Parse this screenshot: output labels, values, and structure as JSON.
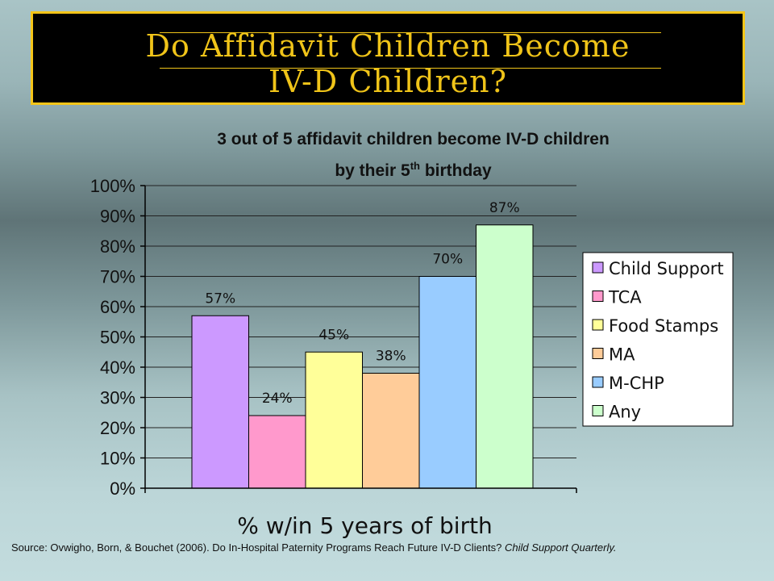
{
  "slide": {
    "title_line1": "Do Affidavit Children Become",
    "title_line2": "IV-D Children?",
    "title_color": "#f0c419",
    "border_color": "#f5c518",
    "source_text": "Source: Ovwigho, Born, & Bouchet (2006).  Do In-Hospital Paternity Programs Reach Future IV-D Clients? ",
    "source_journal": "Child Support Quarterly."
  },
  "chart_data": {
    "type": "bar",
    "title_line1": "3 out of 5 affidavit children become IV-D children",
    "title_line2_pre": "by their 5",
    "title_line2_sup": "th",
    "title_line2_post": " birthday",
    "xlabel": "% w/in 5 years of birth",
    "ylim": [
      0,
      100
    ],
    "yticks": [
      0,
      10,
      20,
      30,
      40,
      50,
      60,
      70,
      80,
      90,
      100
    ],
    "ytick_suffix": "%",
    "grid": true,
    "legend_position": "right",
    "series": [
      {
        "name": "Child Support",
        "value": 57,
        "label": "57%",
        "color": "#cc99ff"
      },
      {
        "name": "TCA",
        "value": 24,
        "label": "24%",
        "color": "#ff99cc"
      },
      {
        "name": "Food Stamps",
        "value": 45,
        "label": "45%",
        "color": "#ffff99"
      },
      {
        "name": "MA",
        "value": 38,
        "label": "38%",
        "color": "#ffcc99"
      },
      {
        "name": "M-CHP",
        "value": 70,
        "label": "70%",
        "color": "#99ccff"
      },
      {
        "name": "Any",
        "value": 87,
        "label": "87%",
        "color": "#ccffcc"
      }
    ]
  }
}
